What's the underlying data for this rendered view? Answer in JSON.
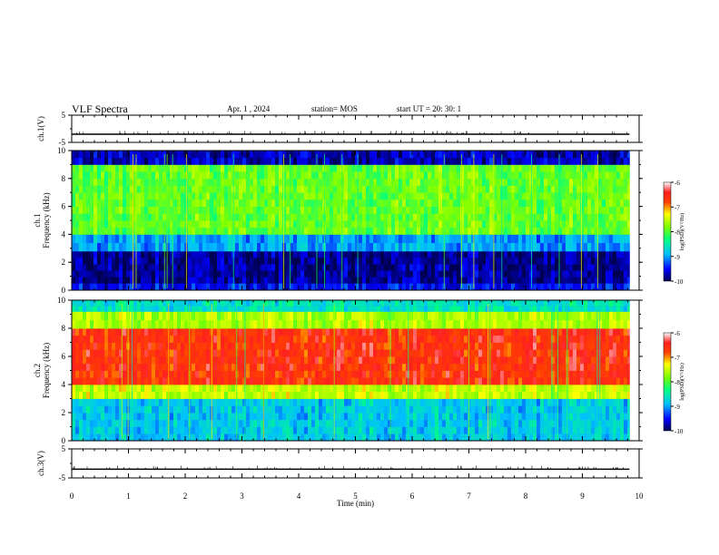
{
  "header": {
    "title": "VLF Spectra",
    "date": "Apr. 1 , 2024",
    "station": "station= MOS",
    "start": "start UT =   20: 30: 1"
  },
  "chart_data": [
    {
      "type": "line",
      "panel": "ch1-voltage",
      "ylabel": "ch.1(V)",
      "ylim": [
        -5,
        5
      ],
      "yticks": [
        "5",
        "-5"
      ],
      "x": [
        0,
        9.83
      ],
      "values": [
        -2,
        -2
      ]
    },
    {
      "type": "heatmap",
      "panel": "ch1-spectrogram",
      "ylabel_top": "ch.1",
      "ylabel": "Frequency (kHz)",
      "ylim": [
        0,
        10
      ],
      "yticks": [
        "0",
        "2",
        "4",
        "6",
        "8",
        "10"
      ],
      "colorbar": {
        "label": "log(PSD)(V²/Hz)",
        "range": [
          -10,
          -6
        ],
        "ticks": [
          "-6",
          "-7",
          "-8",
          "-9",
          "-10"
        ]
      },
      "bands": [
        {
          "from_khz": 0,
          "to_khz": 0.5,
          "level": -9.5
        },
        {
          "from_khz": 0.5,
          "to_khz": 2.8,
          "level": -9.8
        },
        {
          "from_khz": 2.8,
          "to_khz": 4,
          "level": -9.0
        },
        {
          "from_khz": 4,
          "to_khz": 9,
          "level": -7.9
        },
        {
          "from_khz": 9,
          "to_khz": 10,
          "level": -9.7
        }
      ]
    },
    {
      "type": "heatmap",
      "panel": "ch2-spectrogram",
      "ylabel_top": "ch.2",
      "ylabel": "Frequency (kHz)",
      "ylim": [
        0,
        10
      ],
      "yticks": [
        "0",
        "2",
        "4",
        "6",
        "8",
        "10"
      ],
      "colorbar": {
        "label": "log(PSD)(V²/Hz)",
        "range": [
          -10,
          -6
        ],
        "ticks": [
          "-6",
          "-7",
          "-8",
          "-9",
          "-10"
        ]
      },
      "bands": [
        {
          "from_khz": 0,
          "to_khz": 3,
          "level": -8.8
        },
        {
          "from_khz": 3,
          "to_khz": 4,
          "level": -7.5
        },
        {
          "from_khz": 4,
          "to_khz": 8,
          "level": -6.6
        },
        {
          "from_khz": 8,
          "to_khz": 9.2,
          "level": -7.6
        },
        {
          "from_khz": 9.2,
          "to_khz": 10,
          "level": -8.6
        }
      ]
    },
    {
      "type": "line",
      "panel": "ch3-voltage",
      "ylabel": "ch.3(V)",
      "ylim": [
        -5,
        5
      ],
      "yticks": [
        "5",
        "-5"
      ],
      "x": [
        0,
        9.83
      ],
      "values": [
        -2,
        -2
      ]
    }
  ],
  "xaxis": {
    "label": "Time (min)",
    "range": [
      0,
      10
    ],
    "ticks": [
      "0",
      "1",
      "2",
      "3",
      "4",
      "5",
      "6",
      "7",
      "8",
      "9",
      "10"
    ]
  },
  "colors": {
    "axis": "#000000",
    "background": "#ffffff"
  }
}
